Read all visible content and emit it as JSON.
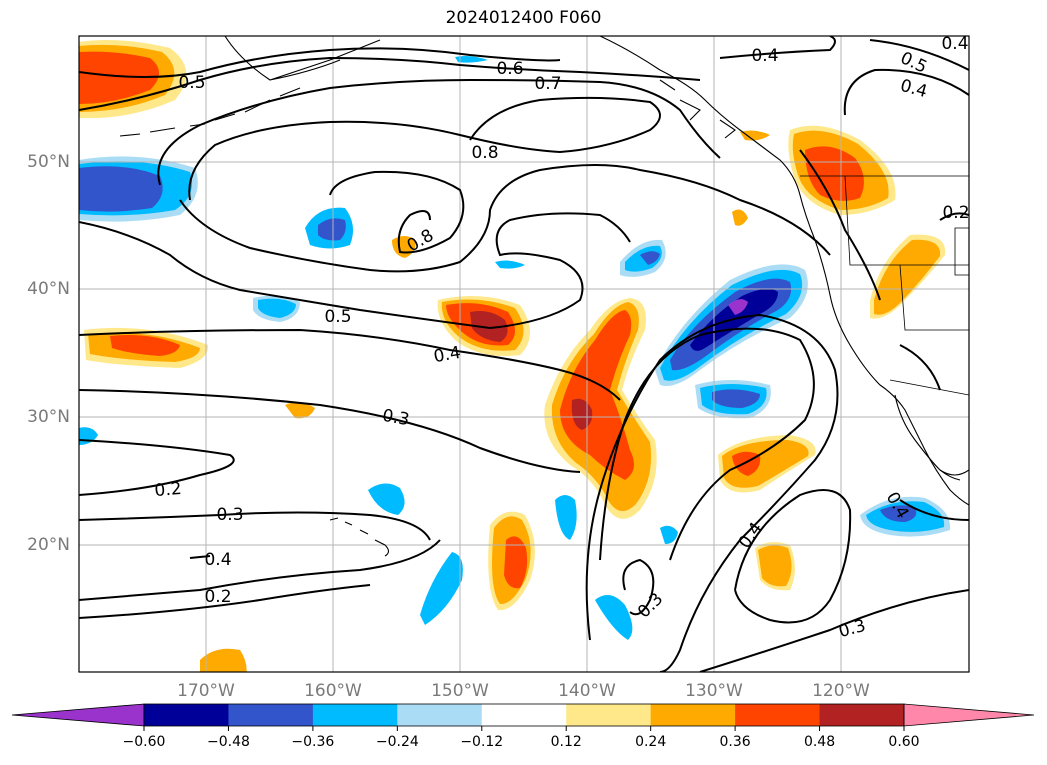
{
  "title": "2024012400 F060",
  "map": {
    "latitude_labels": [
      "50°N",
      "40°N",
      "30°N",
      "20°N"
    ],
    "longitude_labels": [
      "170°W",
      "160°W",
      "150°W",
      "140°W",
      "130°W",
      "120°W"
    ],
    "extent_lon": [
      -180,
      -110
    ],
    "extent_lat": [
      10,
      60
    ],
    "grid": true,
    "coastlines": true,
    "contour_color": "#000000",
    "contour_labels": [
      "0.6",
      "0.7",
      "0.5",
      "0.4",
      "0.5",
      "0.4",
      "0.4",
      "0.8",
      "0.8",
      "0.5",
      "0.4",
      "0.3",
      "0.2",
      "0.3",
      "0.4",
      "0.2",
      "0.4",
      "0.3",
      "0.4",
      "0.3",
      "0.2"
    ]
  },
  "colorbar": {
    "tick_labels": [
      "−0.60",
      "−0.48",
      "−0.36",
      "−0.24",
      "−0.12",
      "0.12",
      "0.24",
      "0.36",
      "0.48",
      "0.60"
    ],
    "colors": [
      "#9933cc",
      "#000099",
      "#3355cc",
      "#00bbff",
      "#aaddf5",
      "#ffffff",
      "#ffe88a",
      "#ffaa00",
      "#ff4400",
      "#b22222",
      "#ff88aa"
    ],
    "extend": "both"
  }
}
